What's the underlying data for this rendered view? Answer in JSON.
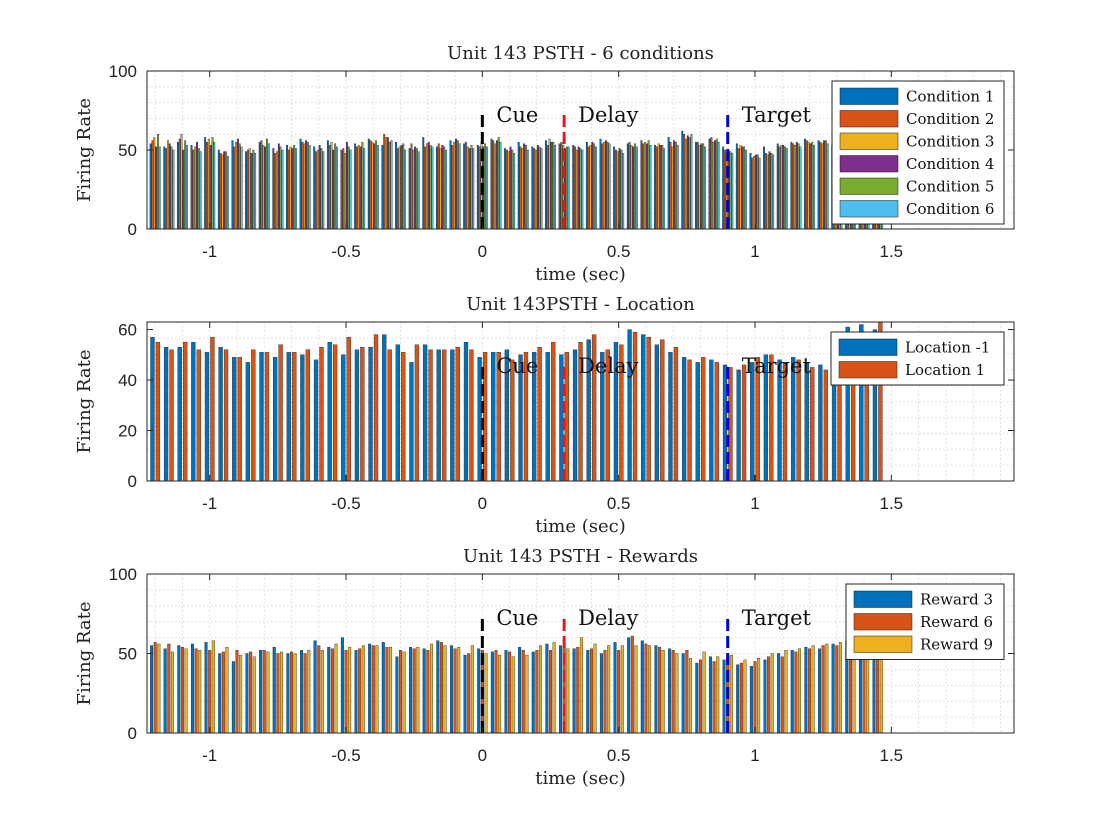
{
  "figure": {
    "background": "#ffffff"
  },
  "chart_data": [
    {
      "type": "bar",
      "title": "Unit 143 PSTH - 6 conditions",
      "xlabel": "time (sec)",
      "ylabel": "Firing Rate",
      "xlim": [
        -1.23,
        1.95
      ],
      "ylim": [
        0,
        100
      ],
      "xticks": [
        -1,
        -0.5,
        0,
        0.5,
        1,
        1.5
      ],
      "xtick_labels": [
        "-1",
        "-0.5",
        "0",
        "0.5",
        "1",
        "1.5"
      ],
      "yticks": [
        0,
        50,
        100
      ],
      "ytick_labels": [
        "0",
        "50",
        "100"
      ],
      "grid": true,
      "legend_position": "top-right",
      "x_start": -1.2,
      "x_step": 0.05,
      "events": [
        {
          "label": "Cue",
          "time": 0,
          "color": "#000000"
        },
        {
          "label": "Delay",
          "time": 0.3,
          "color": "#e31a1c"
        },
        {
          "label": "Target",
          "time": 0.9,
          "color": "#0000cc"
        }
      ],
      "series": [
        {
          "name": "Condition 1",
          "color": "#0072BD",
          "values": [
            54,
            52,
            55,
            53,
            58,
            50,
            56,
            49,
            55,
            51,
            53,
            57,
            52,
            56,
            50,
            54,
            57,
            53,
            55,
            51,
            58,
            52,
            56,
            54,
            53,
            57,
            51,
            55,
            52,
            56,
            54,
            53,
            55,
            57,
            52,
            54,
            56,
            53,
            58,
            62,
            55,
            57,
            52,
            54,
            48,
            52,
            54,
            55,
            57,
            56,
            53,
            60,
            62,
            58
          ]
        },
        {
          "name": "Condition 2",
          "color": "#D95319",
          "values": [
            56,
            51,
            57,
            50,
            55,
            48,
            52,
            50,
            56,
            48,
            50,
            55,
            49,
            53,
            51,
            52,
            56,
            60,
            51,
            54,
            52,
            54,
            53,
            55,
            52,
            56,
            50,
            52,
            51,
            53,
            55,
            52,
            52,
            54,
            50,
            55,
            54,
            52,
            55,
            60,
            55,
            58,
            50,
            51,
            45,
            48,
            52,
            54,
            56,
            55,
            54,
            58,
            61,
            60
          ]
        },
        {
          "name": "Condition 3",
          "color": "#EDB120",
          "values": [
            58,
            56,
            60,
            52,
            57,
            47,
            55,
            51,
            53,
            49,
            52,
            54,
            50,
            55,
            48,
            53,
            55,
            58,
            52,
            50,
            54,
            51,
            55,
            52,
            55,
            54,
            49,
            51,
            50,
            57,
            53,
            50,
            53,
            55,
            49,
            53,
            55,
            54,
            52,
            57,
            53,
            55,
            48,
            53,
            46,
            47,
            53,
            53,
            55,
            54,
            52,
            57,
            59,
            58
          ]
        },
        {
          "name": "Condition 4",
          "color": "#7E2F8E",
          "values": [
            52,
            54,
            50,
            55,
            53,
            49,
            57,
            48,
            52,
            54,
            51,
            56,
            53,
            50,
            55,
            52,
            54,
            58,
            53,
            52,
            55,
            53,
            57,
            51,
            52,
            56,
            52,
            54,
            53,
            55,
            51,
            52,
            55,
            56,
            51,
            52,
            54,
            53,
            56,
            59,
            54,
            56,
            50,
            52,
            47,
            49,
            53,
            55,
            54,
            56,
            55,
            57,
            60,
            59
          ]
        },
        {
          "name": "Condition 5",
          "color": "#77AC30",
          "values": [
            60,
            52,
            56,
            51,
            58,
            49,
            54,
            50,
            57,
            52,
            53,
            55,
            51,
            54,
            52,
            55,
            56,
            55,
            54,
            51,
            53,
            52,
            56,
            53,
            54,
            58,
            50,
            53,
            52,
            55,
            52,
            51,
            54,
            55,
            50,
            54,
            56,
            53,
            55,
            58,
            54,
            57,
            49,
            52,
            47,
            48,
            52,
            54,
            55,
            56,
            54,
            58,
            60,
            62
          ]
        },
        {
          "name": "Condition 6",
          "color": "#4DBEEE",
          "values": [
            52,
            50,
            53,
            49,
            55,
            46,
            52,
            48,
            54,
            50,
            51,
            53,
            49,
            52,
            50,
            51,
            53,
            56,
            50,
            49,
            52,
            50,
            54,
            51,
            52,
            55,
            48,
            50,
            51,
            53,
            52,
            50,
            52,
            54,
            48,
            52,
            53,
            51,
            53,
            60,
            52,
            55,
            48,
            50,
            45,
            47,
            51,
            52,
            53,
            54,
            52,
            56,
            58,
            65
          ]
        }
      ]
    },
    {
      "type": "bar",
      "title": "Unit 143PSTH - Location",
      "xlabel": "time (sec)",
      "ylabel": "Firing Rate",
      "xlim": [
        -1.23,
        1.95
      ],
      "ylim": [
        0,
        63
      ],
      "xticks": [
        -1,
        -0.5,
        0,
        0.5,
        1,
        1.5
      ],
      "xtick_labels": [
        "-1",
        "-0.5",
        "0",
        "0.5",
        "1",
        "1.5"
      ],
      "yticks": [
        0,
        20,
        40,
        60
      ],
      "ytick_labels": [
        "0",
        "20",
        "40",
        "60"
      ],
      "grid": true,
      "legend_position": "top-right",
      "x_start": -1.2,
      "x_step": 0.05,
      "events": [
        {
          "label": "Cue",
          "time": 0,
          "color": "#000000"
        },
        {
          "label": "Delay",
          "time": 0.3,
          "color": "#e31a1c"
        },
        {
          "label": "Target",
          "time": 0.9,
          "color": "#0000cc"
        }
      ],
      "series": [
        {
          "name": "Location -1",
          "color": "#0072BD",
          "values": [
            57,
            53,
            53,
            55,
            51,
            53,
            49,
            47,
            51,
            49,
            51,
            50,
            48,
            55,
            50,
            52,
            53,
            58,
            54,
            47,
            54,
            52,
            52,
            55,
            49,
            51,
            52,
            50,
            51,
            51,
            50,
            52,
            56,
            51,
            55,
            60,
            58,
            54,
            51,
            49,
            47,
            48,
            46,
            44,
            47,
            50,
            48,
            49,
            47,
            46,
            46,
            61,
            62,
            60
          ]
        },
        {
          "name": "Location 1",
          "color": "#D95319",
          "values": [
            55,
            52,
            55,
            52,
            57,
            52,
            49,
            52,
            51,
            54,
            51,
            52,
            53,
            54,
            57,
            53,
            58,
            52,
            51,
            54,
            52,
            52,
            53,
            52,
            51,
            51,
            48,
            51,
            53,
            55,
            51,
            55,
            58,
            52,
            54,
            59,
            57,
            56,
            53,
            48,
            49,
            47,
            45,
            46,
            49,
            50,
            47,
            48,
            45,
            44,
            48,
            49,
            59,
            63
          ]
        }
      ]
    },
    {
      "type": "bar",
      "title": "Unit 143 PSTH - Rewards",
      "xlabel": "time (sec)",
      "ylabel": "Firing Rate",
      "xlim": [
        -1.23,
        1.95
      ],
      "ylim": [
        0,
        100
      ],
      "xticks": [
        -1,
        -0.5,
        0,
        0.5,
        1,
        1.5
      ],
      "xtick_labels": [
        "-1",
        "-0.5",
        "0",
        "0.5",
        "1",
        "1.5"
      ],
      "yticks": [
        0,
        50,
        100
      ],
      "ytick_labels": [
        "0",
        "50",
        "100"
      ],
      "grid": true,
      "legend_position": "top-right",
      "x_start": -1.2,
      "x_step": 0.05,
      "events": [
        {
          "label": "Cue",
          "time": 0,
          "color": "#000000"
        },
        {
          "label": "Delay",
          "time": 0.3,
          "color": "#e31a1c"
        },
        {
          "label": "Target",
          "time": 0.9,
          "color": "#0000cc"
        }
      ],
      "series": [
        {
          "name": "Reward 3",
          "color": "#0072BD",
          "values": [
            55,
            53,
            55,
            56,
            57,
            50,
            45,
            50,
            52,
            54,
            50,
            52,
            58,
            54,
            60,
            52,
            56,
            57,
            48,
            54,
            53,
            58,
            55,
            49,
            53,
            51,
            52,
            54,
            51,
            56,
            55,
            53,
            52,
            50,
            57,
            60,
            58,
            55,
            53,
            50,
            44,
            48,
            46,
            43,
            42,
            46,
            50,
            52,
            54,
            53,
            56,
            58,
            62,
            61
          ]
        },
        {
          "name": "Reward 6",
          "color": "#D95319",
          "values": [
            57,
            56,
            54,
            53,
            52,
            51,
            52,
            51,
            52,
            50,
            51,
            50,
            55,
            53,
            52,
            53,
            55,
            54,
            52,
            53,
            52,
            57,
            53,
            50,
            52,
            52,
            51,
            52,
            52,
            52,
            54,
            54,
            53,
            52,
            52,
            61,
            56,
            54,
            52,
            52,
            46,
            45,
            48,
            44,
            45,
            48,
            48,
            51,
            53,
            55,
            55,
            56,
            58,
            59
          ]
        },
        {
          "name": "Reward 9",
          "color": "#EDB120",
          "values": [
            56,
            51,
            53,
            52,
            58,
            54,
            49,
            48,
            51,
            51,
            50,
            52,
            52,
            56,
            54,
            55,
            55,
            54,
            51,
            54,
            56,
            55,
            54,
            55,
            50,
            49,
            48,
            49,
            55,
            57,
            53,
            60,
            56,
            55,
            55,
            55,
            55,
            52,
            50,
            47,
            51,
            48,
            49,
            46,
            47,
            50,
            52,
            53,
            55,
            56,
            57,
            60,
            63,
            65
          ]
        }
      ]
    }
  ]
}
